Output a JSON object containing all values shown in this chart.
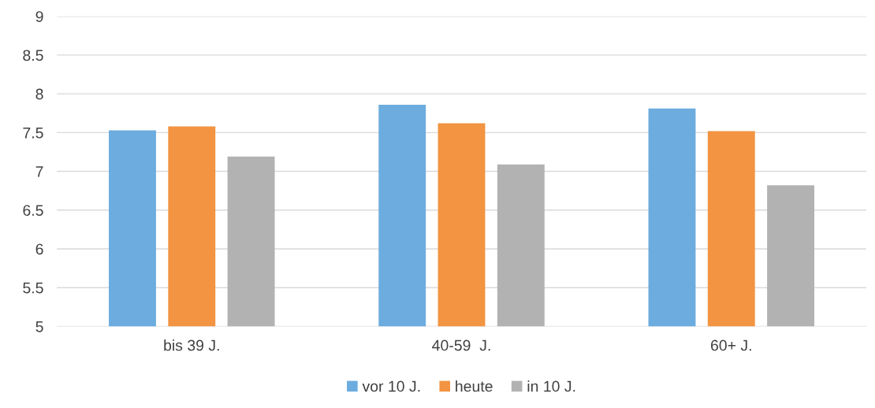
{
  "chart_data": {
    "type": "bar",
    "categories": [
      "bis 39 J.",
      "40-59  J.",
      "60+ J."
    ],
    "series": [
      {
        "name": "vor 10 J.",
        "color": "#6cacdf",
        "values": [
          7.53,
          7.86,
          7.81
        ]
      },
      {
        "name": "heute",
        "color": "#f29441",
        "values": [
          7.58,
          7.62,
          7.52
        ]
      },
      {
        "name": "in 10 J.",
        "color": "#b2b2b2",
        "values": [
          7.19,
          7.09,
          6.82
        ]
      }
    ],
    "ylim": [
      5,
      9
    ],
    "yticks": [
      5,
      5.5,
      6,
      6.5,
      7,
      7.5,
      8,
      8.5,
      9
    ],
    "grid": "y",
    "legend": "bottom"
  }
}
